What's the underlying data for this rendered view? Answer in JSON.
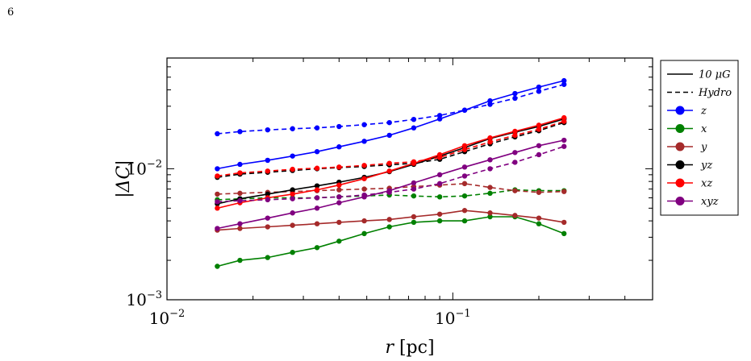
{
  "page": {
    "number": "6"
  },
  "chart_data": {
    "type": "line",
    "xscale": "log",
    "yscale": "log",
    "xlim": [
      0.01,
      0.5
    ],
    "ylim": [
      0.001,
      0.07
    ],
    "x_ticks": [
      {
        "value": 0.01,
        "base": "10",
        "exp": "−2"
      },
      {
        "value": 0.1,
        "base": "10",
        "exp": "−1"
      }
    ],
    "y_ticks": [
      {
        "value": 0.001,
        "base": "10",
        "exp": "−3"
      },
      {
        "value": 0.01,
        "base": "10",
        "exp": "−2"
      }
    ],
    "xlabel": {
      "var": "r",
      "unit": "[pc]"
    },
    "ylabel": "|ΔC|",
    "legend_placement": "outside-right",
    "style_legend": [
      {
        "label": "10 μG",
        "dash": "solid"
      },
      {
        "label": "Hydro",
        "dash": "dashed"
      }
    ],
    "x": [
      0.015,
      0.018,
      0.0225,
      0.0275,
      0.0335,
      0.04,
      0.049,
      0.06,
      0.073,
      0.09,
      0.11,
      0.135,
      0.165,
      0.2,
      0.245
    ],
    "series": [
      {
        "name": "z",
        "color": "#0000ff",
        "solid": [
          0.01,
          0.0108,
          0.0116,
          0.0125,
          0.0135,
          0.0147,
          0.0162,
          0.018,
          0.0205,
          0.024,
          0.028,
          0.033,
          0.0375,
          0.042,
          0.047
        ],
        "dashed": [
          0.0185,
          0.0192,
          0.0198,
          0.0202,
          0.0205,
          0.021,
          0.0217,
          0.0225,
          0.0238,
          0.0255,
          0.028,
          0.031,
          0.0345,
          0.039,
          0.044
        ]
      },
      {
        "name": "x",
        "color": "#008000",
        "solid": [
          0.0018,
          0.002,
          0.0021,
          0.0023,
          0.0025,
          0.0028,
          0.0032,
          0.0036,
          0.0039,
          0.004,
          0.004,
          0.0043,
          0.0043,
          0.0038,
          0.0032
        ],
        "dashed": [
          0.0058,
          0.0059,
          0.006,
          0.006,
          0.006,
          0.0061,
          0.0062,
          0.0063,
          0.0062,
          0.0061,
          0.0062,
          0.0065,
          0.0069,
          0.0068,
          0.0068
        ]
      },
      {
        "name": "y",
        "color": "#a52a2a",
        "solid": [
          0.0034,
          0.0035,
          0.0036,
          0.0037,
          0.0038,
          0.0039,
          0.004,
          0.0041,
          0.0043,
          0.0045,
          0.0048,
          0.0046,
          0.0044,
          0.0042,
          0.0039
        ],
        "dashed": [
          0.0064,
          0.0065,
          0.0066,
          0.0067,
          0.0068,
          0.0069,
          0.007,
          0.0071,
          0.0073,
          0.0075,
          0.0077,
          0.0072,
          0.0068,
          0.0066,
          0.0067
        ]
      },
      {
        "name": "yz",
        "color": "#000000",
        "solid": [
          0.0054,
          0.0059,
          0.0064,
          0.0069,
          0.0074,
          0.0079,
          0.0086,
          0.0095,
          0.0108,
          0.0125,
          0.0145,
          0.017,
          0.019,
          0.021,
          0.024
        ],
        "dashed": [
          0.0086,
          0.0091,
          0.0094,
          0.0097,
          0.01,
          0.0102,
          0.0104,
          0.0107,
          0.011,
          0.0118,
          0.0135,
          0.0155,
          0.0175,
          0.0195,
          0.0225
        ]
      },
      {
        "name": "xz",
        "color": "#ff0000",
        "solid": [
          0.005,
          0.0055,
          0.006,
          0.0064,
          0.0069,
          0.0075,
          0.0084,
          0.0096,
          0.011,
          0.0128,
          0.015,
          0.0172,
          0.0193,
          0.0215,
          0.0245
        ],
        "dashed": [
          0.0088,
          0.0093,
          0.0096,
          0.0099,
          0.0101,
          0.0103,
          0.0106,
          0.011,
          0.0113,
          0.0122,
          0.014,
          0.016,
          0.018,
          0.02,
          0.023
        ]
      },
      {
        "name": "xyz",
        "color": "#800080",
        "solid": [
          0.0035,
          0.0038,
          0.0042,
          0.0046,
          0.005,
          0.0055,
          0.0061,
          0.0068,
          0.0078,
          0.009,
          0.0103,
          0.0117,
          0.0133,
          0.015,
          0.0165
        ],
        "dashed": [
          0.0056,
          0.0057,
          0.0058,
          0.0059,
          0.006,
          0.0061,
          0.0063,
          0.0066,
          0.007,
          0.0077,
          0.0088,
          0.01,
          0.0112,
          0.0128,
          0.0148
        ]
      }
    ]
  }
}
